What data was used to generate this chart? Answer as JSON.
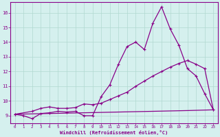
{
  "title": "",
  "xlabel": "Windchill (Refroidissement éolien,°C)",
  "ylabel": "",
  "bg_color": "#d5f0ee",
  "line_color": "#880088",
  "grid_color": "#b0d8d0",
  "xlim": [
    -0.5,
    23.5
  ],
  "ylim": [
    8.5,
    16.7
  ],
  "xticks": [
    0,
    1,
    2,
    3,
    4,
    5,
    6,
    7,
    8,
    9,
    10,
    11,
    12,
    13,
    14,
    15,
    16,
    17,
    18,
    19,
    20,
    21,
    22,
    23
  ],
  "yticks": [
    9,
    10,
    11,
    12,
    13,
    14,
    15,
    16
  ],
  "line1_x": [
    0,
    1,
    2,
    3,
    4,
    5,
    6,
    7,
    8,
    9,
    10,
    11,
    12,
    13,
    14,
    15,
    16,
    17,
    18,
    19,
    20,
    21,
    22,
    23
  ],
  "line1_y": [
    9.1,
    9.0,
    8.8,
    9.15,
    9.2,
    9.3,
    9.25,
    9.3,
    9.0,
    9.0,
    10.3,
    11.1,
    12.5,
    13.7,
    14.0,
    13.5,
    15.3,
    16.4,
    14.9,
    13.8,
    12.2,
    11.7,
    10.5,
    9.4
  ],
  "line2_x": [
    0,
    2,
    3,
    4,
    5,
    6,
    7,
    8,
    9,
    10,
    11,
    12,
    13,
    14,
    15,
    16,
    17,
    18,
    19,
    20,
    21,
    22,
    23
  ],
  "line2_y": [
    9.1,
    9.3,
    9.5,
    9.6,
    9.5,
    9.5,
    9.55,
    9.8,
    9.75,
    9.85,
    10.1,
    10.35,
    10.6,
    11.0,
    11.35,
    11.7,
    12.0,
    12.3,
    12.55,
    12.75,
    12.5,
    12.2,
    9.4
  ],
  "line3_x": [
    0,
    20,
    23
  ],
  "line3_y": [
    9.1,
    9.35,
    9.4
  ]
}
